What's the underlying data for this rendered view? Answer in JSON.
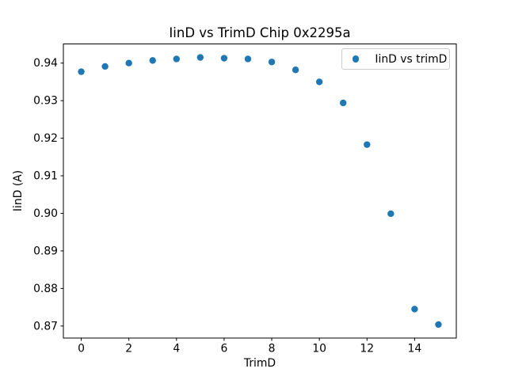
{
  "chart_data": {
    "type": "scatter",
    "title": "IinD vs TrimD Chip 0x2295a",
    "xlabel": "TrimD",
    "ylabel": "IinD (A)",
    "legend": {
      "label": "IinD vs trimD",
      "position": "upper right"
    },
    "marker_color": "#1f77b4",
    "grid": false,
    "x": [
      0,
      1,
      2,
      3,
      4,
      5,
      6,
      7,
      8,
      9,
      10,
      11,
      12,
      13,
      14,
      15
    ],
    "y": [
      0.9377,
      0.9391,
      0.94,
      0.9407,
      0.9411,
      0.9415,
      0.9413,
      0.9411,
      0.9403,
      0.9382,
      0.935,
      0.9294,
      0.9183,
      0.8999,
      0.8745,
      0.8704
    ],
    "xlim": [
      -0.75,
      15.75
    ],
    "ylim": [
      0.8668,
      0.9451
    ],
    "xticks": [
      0,
      2,
      4,
      6,
      8,
      10,
      12,
      14
    ],
    "xtick_labels": [
      "0",
      "2",
      "4",
      "6",
      "8",
      "10",
      "12",
      "14"
    ],
    "yticks": [
      0.87,
      0.88,
      0.89,
      0.9,
      0.91,
      0.92,
      0.93,
      0.94
    ],
    "ytick_labels": [
      "0.87",
      "0.88",
      "0.89",
      "0.90",
      "0.91",
      "0.92",
      "0.93",
      "0.94"
    ]
  }
}
